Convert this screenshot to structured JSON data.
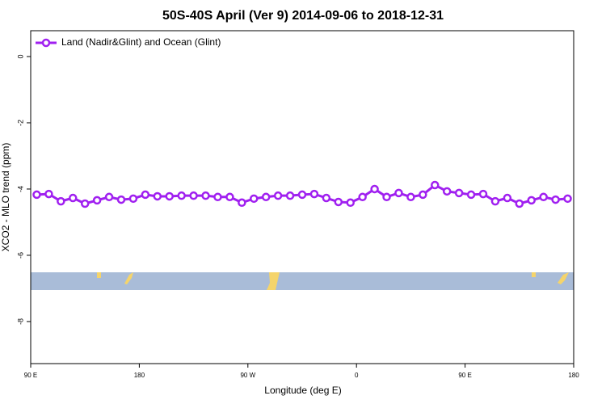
{
  "chart_data": {
    "type": "line",
    "title": "50S-40S April (Ver 9)   2014-09-06 to 2018-12-31",
    "x_label": "Longitude (deg E)",
    "y_label": "XCO2 - MLO trend (ppm)",
    "x": [
      95,
      105,
      115,
      125,
      135,
      145,
      155,
      165,
      175,
      185,
      195,
      205,
      215,
      225,
      235,
      245,
      255,
      265,
      275,
      285,
      295,
      305,
      315,
      325,
      335,
      345,
      355,
      365,
      375,
      385,
      395,
      405,
      415,
      425,
      435,
      445,
      455,
      465,
      475,
      485,
      495,
      505,
      515,
      525,
      535
    ],
    "series": [
      {
        "name": "Land (Nadir&Glint) and Ocean (Glint)",
        "color": "#a020f0",
        "values": [
          -4.17,
          -4.15,
          -4.37,
          -4.27,
          -4.44,
          -4.34,
          -4.24,
          -4.32,
          -4.29,
          -4.17,
          -4.22,
          -4.22,
          -4.2,
          -4.2,
          -4.2,
          -4.24,
          -4.24,
          -4.41,
          -4.29,
          -4.24,
          -4.2,
          -4.2,
          -4.17,
          -4.15,
          -4.27,
          -4.39,
          -4.41,
          -4.24,
          -4.0,
          -4.24,
          -4.12,
          -4.24,
          -4.17,
          -3.88,
          -4.07,
          -4.12,
          -4.17,
          -4.15,
          -4.37,
          -4.27,
          -4.44,
          -4.34,
          -4.24,
          -4.32,
          -4.29
        ]
      }
    ],
    "xlim": [
      90,
      540
    ],
    "xticks": [
      {
        "value": 90,
        "label": "90 E"
      },
      180,
      {
        "value": 270,
        "label": "90 W"
      },
      {
        "value": 360,
        "label": "0"
      },
      {
        "value": 450,
        "label": "90 E"
      },
      {
        "value": 540,
        "label": "180"
      }
    ],
    "ylim": [
      -9.27,
      0.78
    ],
    "yticks": [
      0,
      -2,
      -4,
      -6,
      -8
    ],
    "legend": "top-left"
  }
}
